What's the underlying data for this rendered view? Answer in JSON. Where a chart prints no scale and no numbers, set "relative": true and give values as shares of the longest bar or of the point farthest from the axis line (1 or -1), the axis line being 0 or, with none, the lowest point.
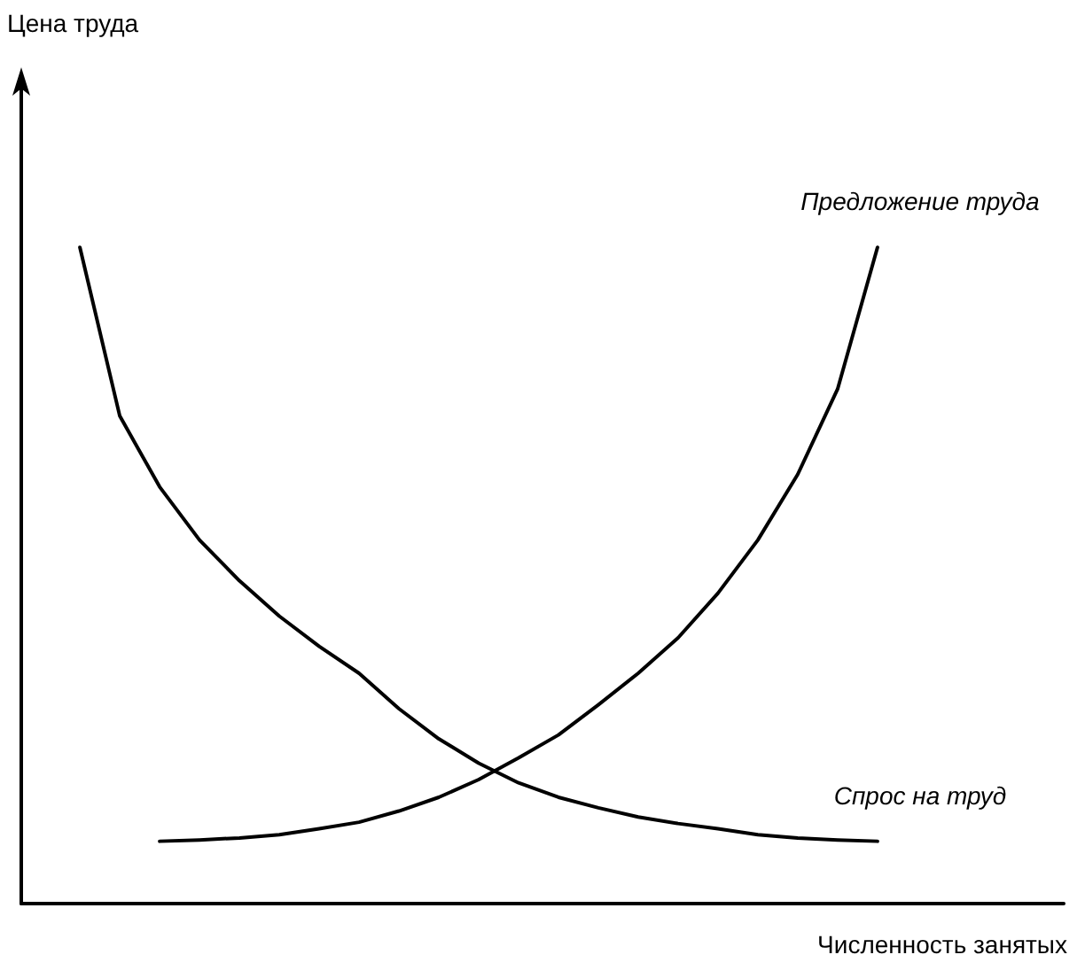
{
  "chart_data": {
    "type": "line",
    "relative": true,
    "xlabel": "Численность занятых",
    "annotations": [
      "Цена труда"
    ],
    "categories": [
      null,
      null,
      null,
      null,
      null,
      null,
      null,
      null,
      null,
      null,
      null,
      null,
      null,
      null,
      null,
      null,
      null,
      null,
      null,
      null,
      null
    ],
    "series": [
      {
        "name": "Предложение труда",
        "color": "#000000",
        "values": [
          null,
          null,
          0.095,
          0.097,
          0.1,
          0.105,
          0.114,
          0.124,
          0.141,
          0.162,
          0.189,
          0.222,
          0.257,
          0.303,
          0.351,
          0.405,
          0.473,
          0.554,
          0.654,
          0.784,
          1.0
        ]
      },
      {
        "name": "Спрос на труд",
        "color": "#000000",
        "values": [
          1.0,
          0.743,
          0.635,
          0.554,
          0.492,
          0.438,
          0.392,
          0.351,
          0.297,
          0.251,
          0.214,
          0.184,
          0.162,
          0.146,
          0.132,
          0.122,
          0.114,
          0.105,
          0.1,
          0.097,
          0.095
        ]
      }
    ],
    "legend": false,
    "grid": false,
    "marker": "none",
    "line_style": "solid"
  }
}
